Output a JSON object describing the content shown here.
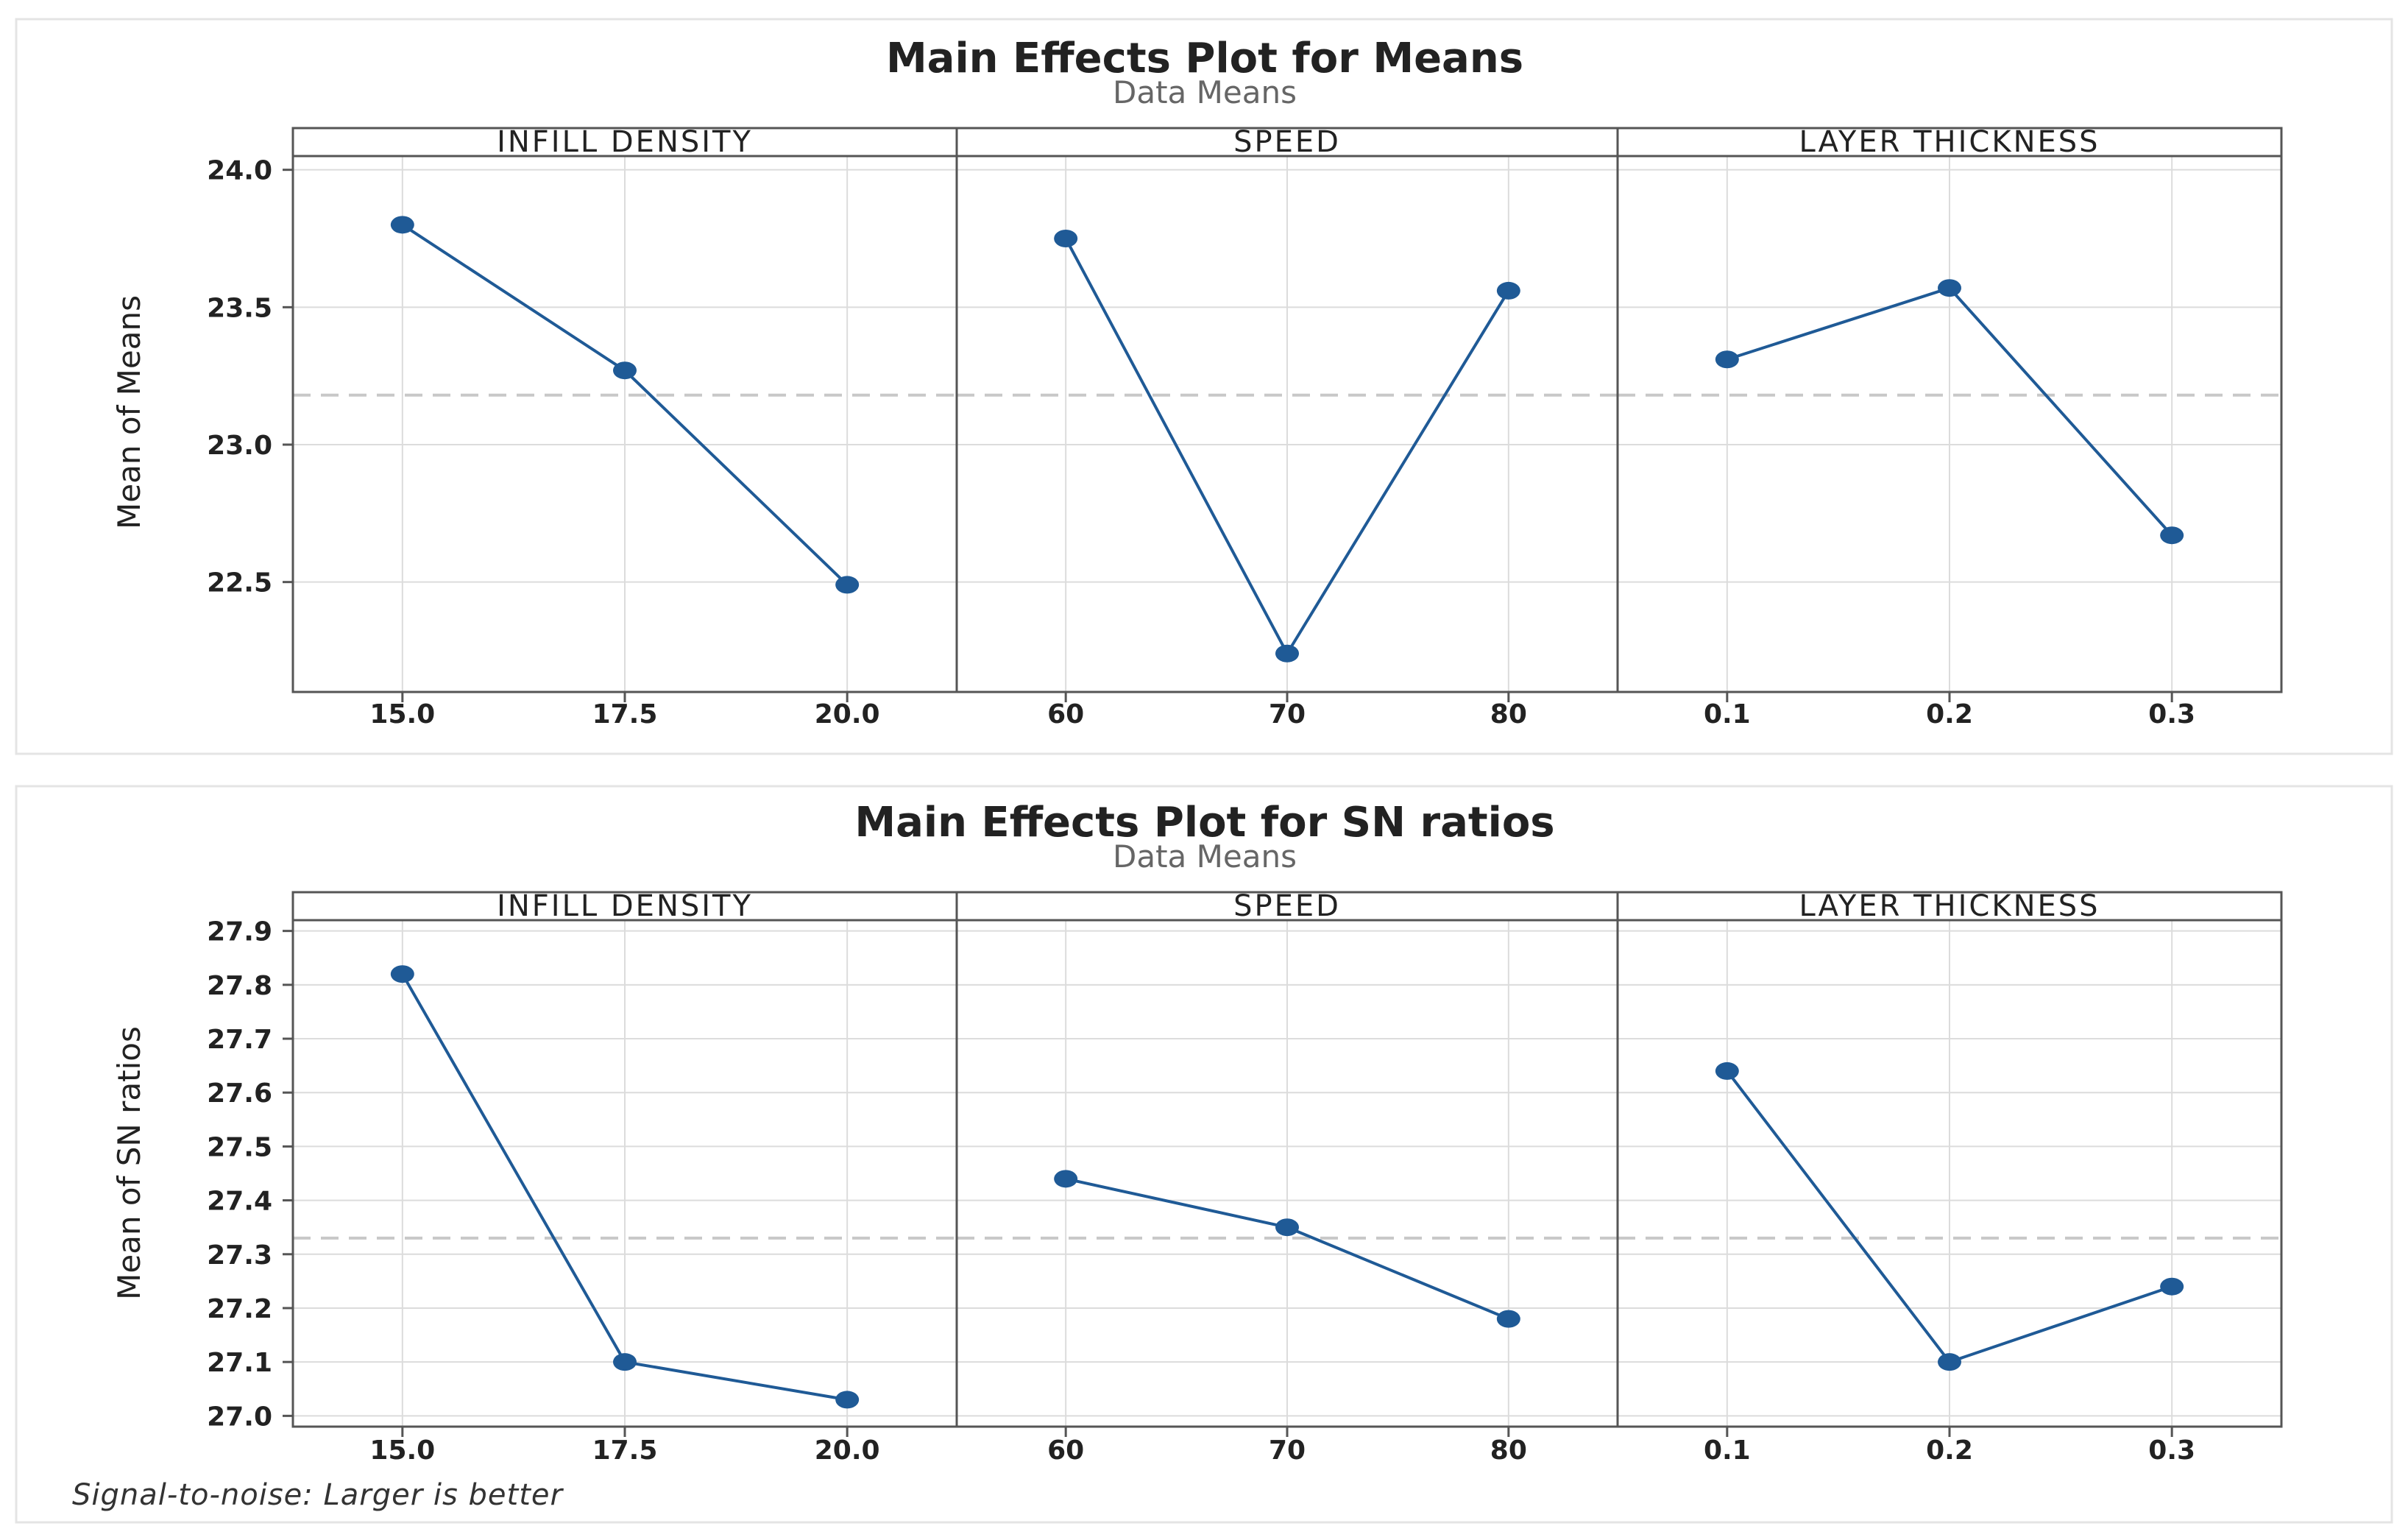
{
  "colors": {
    "series": "#1f5a96",
    "marker": "#1f5a96",
    "overall_mean_line": "#c8c8c8",
    "grid": "#dcdcdc",
    "frame": "#555555",
    "text": "#222222",
    "subtitle": "#666666"
  },
  "footnote": "Signal-to-noise: Larger is better",
  "chart_data": [
    {
      "type": "line",
      "title": "Main Effects Plot for Means",
      "subtitle": "Data Means",
      "ylabel": "Mean of Means",
      "ylim": [
        22.1,
        24.05
      ],
      "yticks": [
        22.5,
        23.0,
        23.5,
        24.0
      ],
      "ytick_labels": [
        "22.5",
        "23.0",
        "23.5",
        "24.0"
      ],
      "overall_mean": 23.18,
      "grid": true,
      "panels": [
        {
          "name": "INFILL DENSITY",
          "categories": [
            "15.0",
            "17.5",
            "20.0"
          ],
          "values": [
            23.8,
            23.27,
            22.49
          ]
        },
        {
          "name": "SPEED",
          "categories": [
            "60",
            "70",
            "80"
          ],
          "values": [
            23.75,
            22.24,
            23.56
          ]
        },
        {
          "name": "LAYER THICKNESS",
          "categories": [
            "0.1",
            "0.2",
            "0.3"
          ],
          "values": [
            23.31,
            23.57,
            22.67
          ]
        }
      ]
    },
    {
      "type": "line",
      "title": "Main Effects Plot for SN ratios",
      "subtitle": "Data Means",
      "ylabel": "Mean of SN ratios",
      "ylim": [
        26.98,
        27.92
      ],
      "yticks": [
        27.0,
        27.1,
        27.2,
        27.3,
        27.4,
        27.5,
        27.6,
        27.7,
        27.8,
        27.9
      ],
      "ytick_labels": [
        "27.0",
        "27.1",
        "27.2",
        "27.3",
        "27.4",
        "27.5",
        "27.6",
        "27.7",
        "27.8",
        "27.9"
      ],
      "overall_mean": 27.33,
      "grid": true,
      "panels": [
        {
          "name": "INFILL DENSITY",
          "categories": [
            "15.0",
            "17.5",
            "20.0"
          ],
          "values": [
            27.82,
            27.1,
            27.03
          ]
        },
        {
          "name": "SPEED",
          "categories": [
            "60",
            "70",
            "80"
          ],
          "values": [
            27.44,
            27.35,
            27.18
          ]
        },
        {
          "name": "LAYER THICKNESS",
          "categories": [
            "0.1",
            "0.2",
            "0.3"
          ],
          "values": [
            27.64,
            27.1,
            27.24
          ]
        }
      ]
    }
  ]
}
